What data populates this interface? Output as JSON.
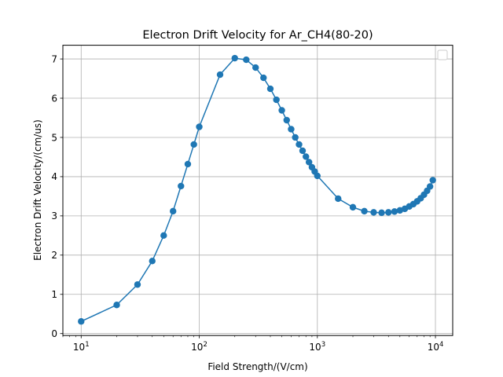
{
  "chart_data": {
    "type": "line",
    "title": "Electron Drift Velocity for Ar_CH4(80-20)",
    "xlabel": "Field Strength/(V/cm)",
    "ylabel": "Electron Drift Velocity/(cm/us)",
    "xscale": "log",
    "xlim": [
      7,
      14000
    ],
    "ylim": [
      -0.05,
      7.35
    ],
    "xticks": [
      {
        "value": 10,
        "base": "10",
        "exp": "1"
      },
      {
        "value": 100,
        "base": "10",
        "exp": "2"
      },
      {
        "value": 1000,
        "base": "10",
        "exp": "3"
      },
      {
        "value": 10000,
        "base": "10",
        "exp": "4"
      }
    ],
    "yticks": [
      0,
      1,
      2,
      3,
      4,
      5,
      6,
      7
    ],
    "grid": true,
    "legend": "top-right",
    "series": [
      {
        "color": "#1f77b4",
        "marker": "circle",
        "x": [
          10,
          20,
          30,
          40,
          50,
          60,
          70,
          80,
          90,
          100,
          150,
          200,
          250,
          300,
          350,
          400,
          450,
          500,
          550,
          600,
          650,
          700,
          750,
          800,
          850,
          900,
          950,
          1000,
          1500,
          2000,
          2500,
          3000,
          3500,
          4000,
          4500,
          5000,
          5500,
          6000,
          6500,
          7000,
          7500,
          8000,
          8500,
          9000,
          9500
        ],
        "y": [
          0.31,
          0.73,
          1.25,
          1.85,
          2.5,
          3.12,
          3.76,
          4.32,
          4.82,
          5.27,
          6.6,
          7.02,
          6.98,
          6.78,
          6.52,
          6.24,
          5.96,
          5.69,
          5.44,
          5.21,
          5.0,
          4.82,
          4.66,
          4.51,
          4.37,
          4.24,
          4.13,
          4.02,
          3.44,
          3.22,
          3.12,
          3.09,
          3.08,
          3.09,
          3.11,
          3.14,
          3.18,
          3.24,
          3.3,
          3.37,
          3.45,
          3.54,
          3.64,
          3.75,
          3.91
        ]
      }
    ]
  }
}
